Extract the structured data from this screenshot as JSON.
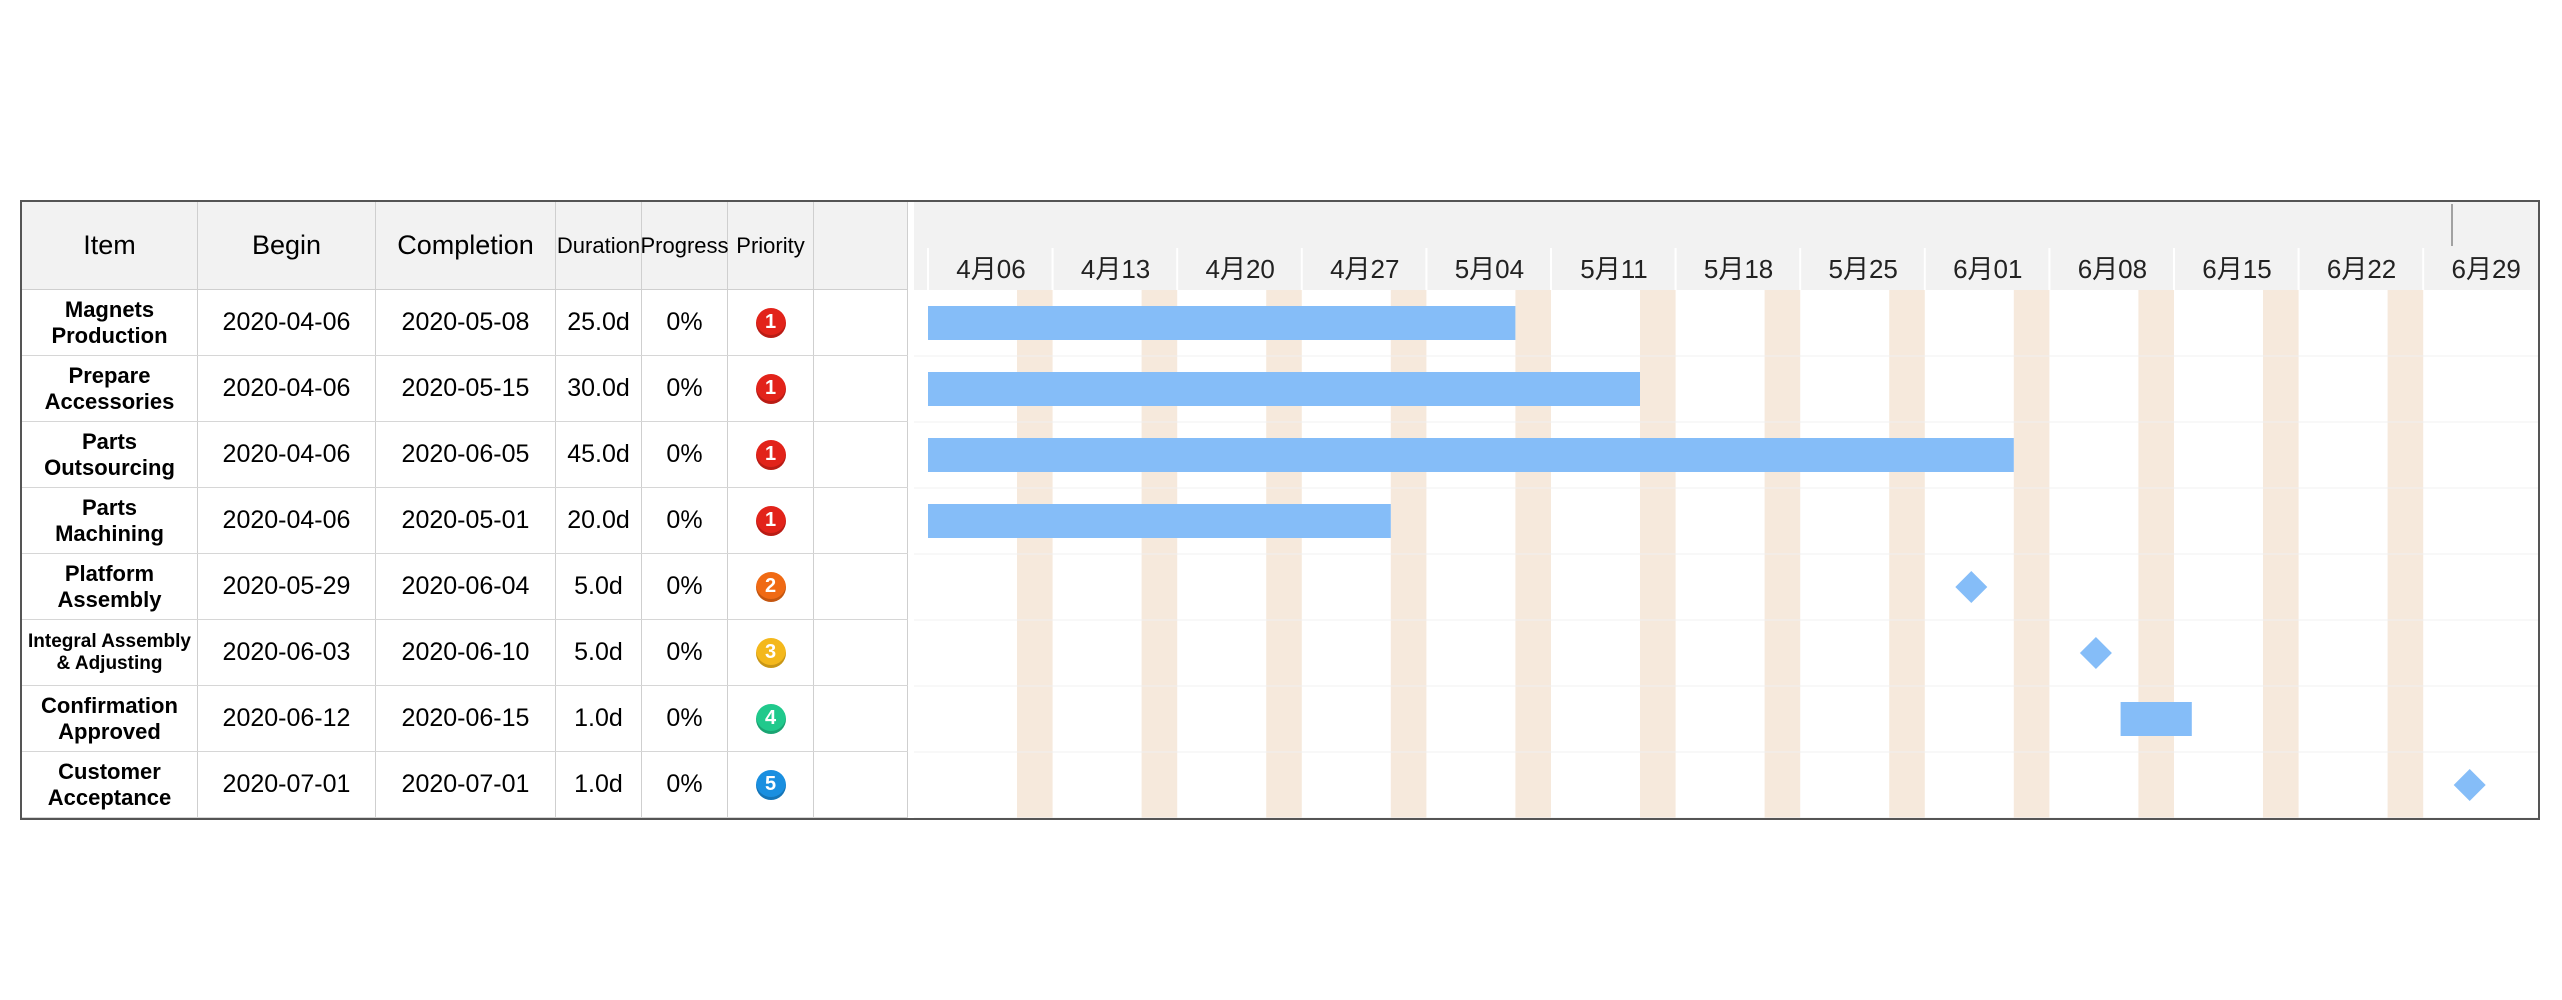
{
  "columns": {
    "item": "Item",
    "begin": "Begin",
    "completion": "Completion",
    "duration": "Duration",
    "progress": "Progress",
    "priority": "Priority"
  },
  "colors": {
    "bar": "#85bdf8",
    "weekend": "#f6e9dc",
    "header_bg": "#f2f2f2",
    "priority": {
      "1": "#e2231a",
      "2": "#f06a14",
      "3": "#f4b81c",
      "4": "#20c98c",
      "5": "#1a8fe0"
    }
  },
  "chart_data": {
    "type": "gantt",
    "timeline_start": "2020-04-06",
    "timeline_end": "2020-07-03",
    "week_ticks": [
      "4月06",
      "4月13",
      "4月20",
      "4月27",
      "5月04",
      "5月11",
      "5月18",
      "5月25",
      "6月01",
      "6月08",
      "6月15",
      "6月22",
      "6月29"
    ],
    "tasks": [
      {
        "item": "Magnets Production",
        "begin": "2020-04-06",
        "completion": "2020-05-08",
        "duration": "25.0d",
        "progress": "0%",
        "priority": "1",
        "shape": "bar"
      },
      {
        "item": "Prepare Accessories",
        "begin": "2020-04-06",
        "completion": "2020-05-15",
        "duration": "30.0d",
        "progress": "0%",
        "priority": "1",
        "shape": "bar"
      },
      {
        "item": "Parts Outsourcing",
        "begin": "2020-04-06",
        "completion": "2020-06-05",
        "duration": "45.0d",
        "progress": "0%",
        "priority": "1",
        "shape": "bar"
      },
      {
        "item": "Parts Machining",
        "begin": "2020-04-06",
        "completion": "2020-05-01",
        "duration": "20.0d",
        "progress": "0%",
        "priority": "1",
        "shape": "bar"
      },
      {
        "item": "Platform Assembly",
        "begin": "2020-05-29",
        "completion": "2020-06-04",
        "duration": "5.0d",
        "progress": "0%",
        "priority": "2",
        "shape": "milestone",
        "milestone_date": "2020-06-03"
      },
      {
        "item": "Integral Assembly & Adjusting",
        "begin": "2020-06-03",
        "completion": "2020-06-10",
        "duration": "5.0d",
        "progress": "0%",
        "priority": "3",
        "shape": "milestone",
        "milestone_date": "2020-06-10"
      },
      {
        "item": "Confirmation Approved",
        "begin": "2020-06-12",
        "completion": "2020-06-15",
        "duration": "1.0d",
        "progress": "0%",
        "priority": "4",
        "shape": "bar"
      },
      {
        "item": "Customer Acceptance",
        "begin": "2020-07-01",
        "completion": "2020-07-01",
        "duration": "1.0d",
        "progress": "0%",
        "priority": "5",
        "shape": "milestone",
        "milestone_date": "2020-07-01"
      }
    ]
  }
}
